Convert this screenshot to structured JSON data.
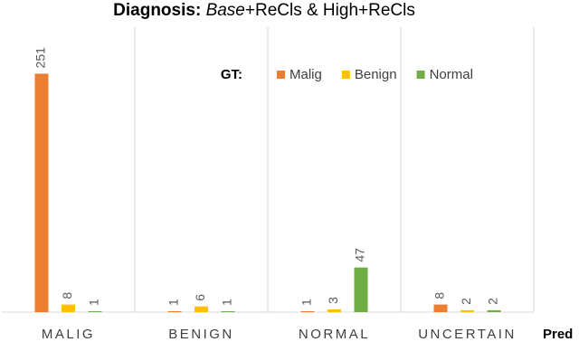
{
  "chart_data": {
    "type": "bar",
    "title": [
      "Diagnosis:",
      "Base",
      "+ReCls & High+ReCls"
    ],
    "x_label": "Pred",
    "legend_title": "GT:",
    "categories": [
      "MALIG",
      "BENIGN",
      "NORMAL",
      "UNCERTAIN"
    ],
    "series": [
      {
        "name": "Malig",
        "color": "#ed7d31",
        "values": [
          251,
          1,
          1,
          8
        ]
      },
      {
        "name": "Benign",
        "color": "#ffc000",
        "values": [
          8,
          6,
          3,
          2
        ]
      },
      {
        "name": "Normal",
        "color": "#70ad47",
        "values": [
          1,
          1,
          47,
          2
        ]
      }
    ],
    "ylim": [
      0,
      300
    ],
    "legend": "top-right"
  }
}
